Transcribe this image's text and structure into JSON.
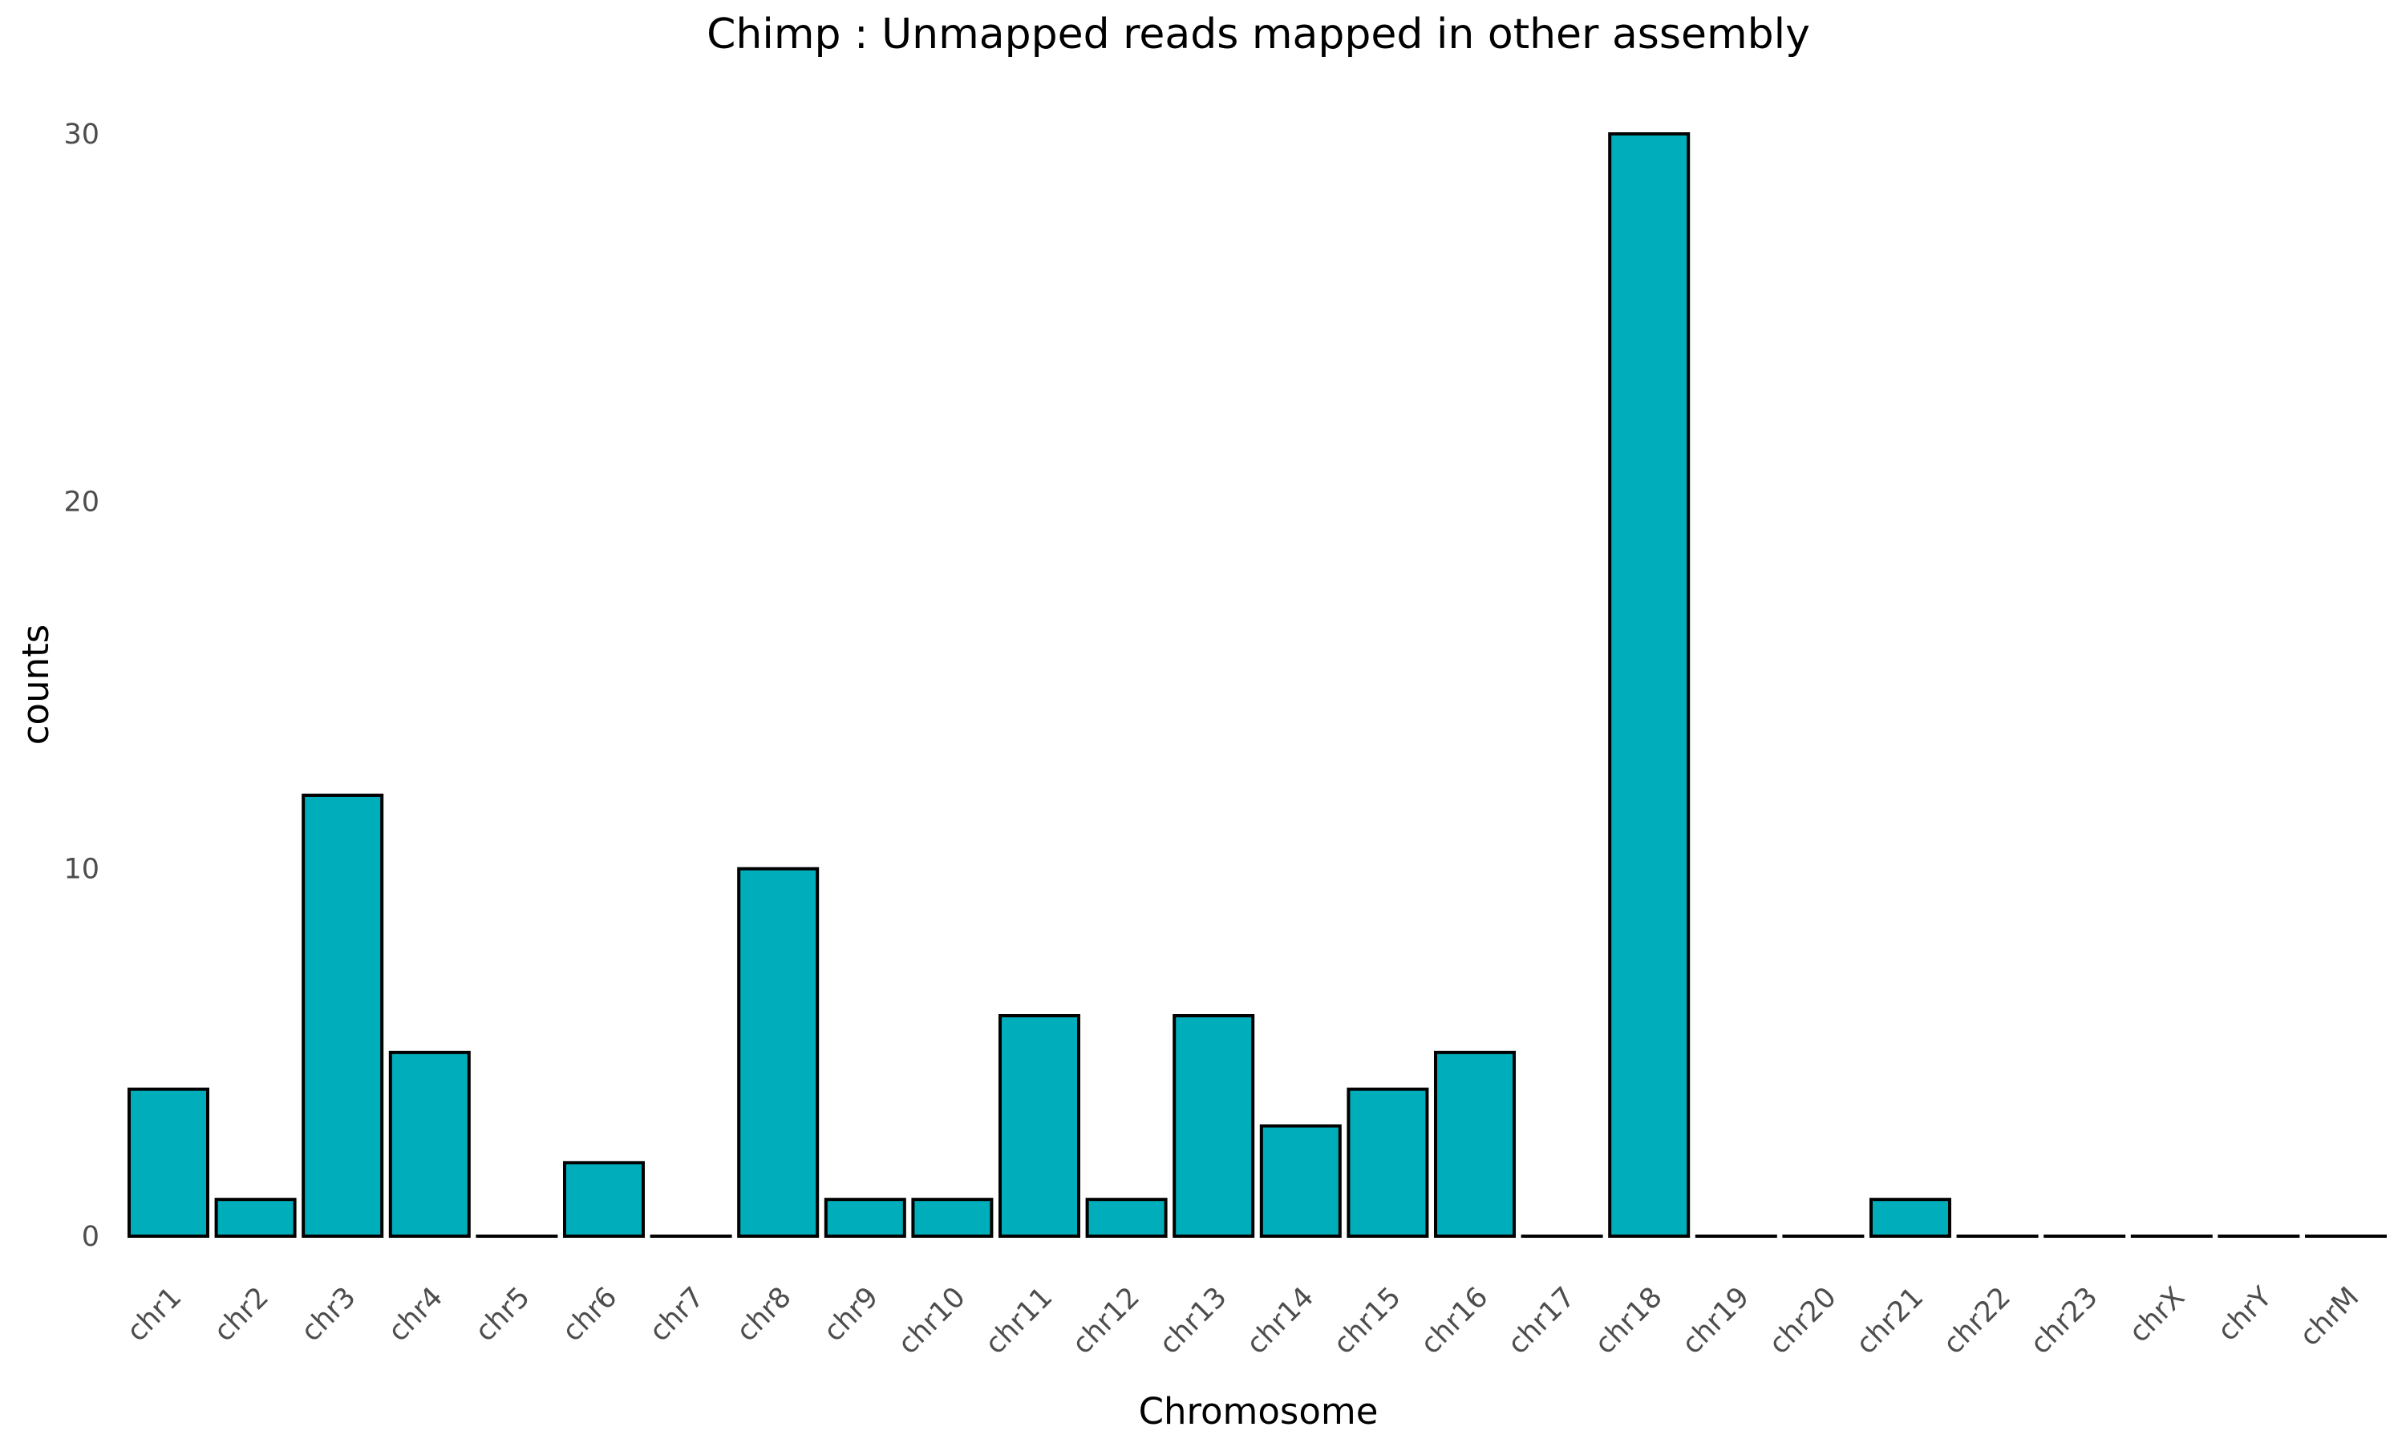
{
  "chart_data": {
    "type": "bar",
    "title": "Chimp : Unmapped reads mapped in other assembly",
    "xlabel": "Chromosome",
    "ylabel": "counts",
    "categories": [
      "chr1",
      "chr2",
      "chr3",
      "chr4",
      "chr5",
      "chr6",
      "chr7",
      "chr8",
      "chr9",
      "chr10",
      "chr11",
      "chr12",
      "chr13",
      "chr14",
      "chr15",
      "chr16",
      "chr17",
      "chr18",
      "chr19",
      "chr20",
      "chr21",
      "chr22",
      "chr23",
      "chrX",
      "chrY",
      "chrM"
    ],
    "values": [
      4,
      1,
      12,
      5,
      0,
      2,
      0,
      10,
      1,
      1,
      6,
      1,
      6,
      3,
      4,
      5,
      0,
      30,
      0,
      0,
      1,
      0,
      0,
      0,
      0,
      0
    ],
    "ylim": [
      0,
      30
    ],
    "yticks": [
      0,
      10,
      20,
      30
    ],
    "grid": false,
    "bar_color": "#00ADBA",
    "bar_edge_color": "#000000"
  }
}
